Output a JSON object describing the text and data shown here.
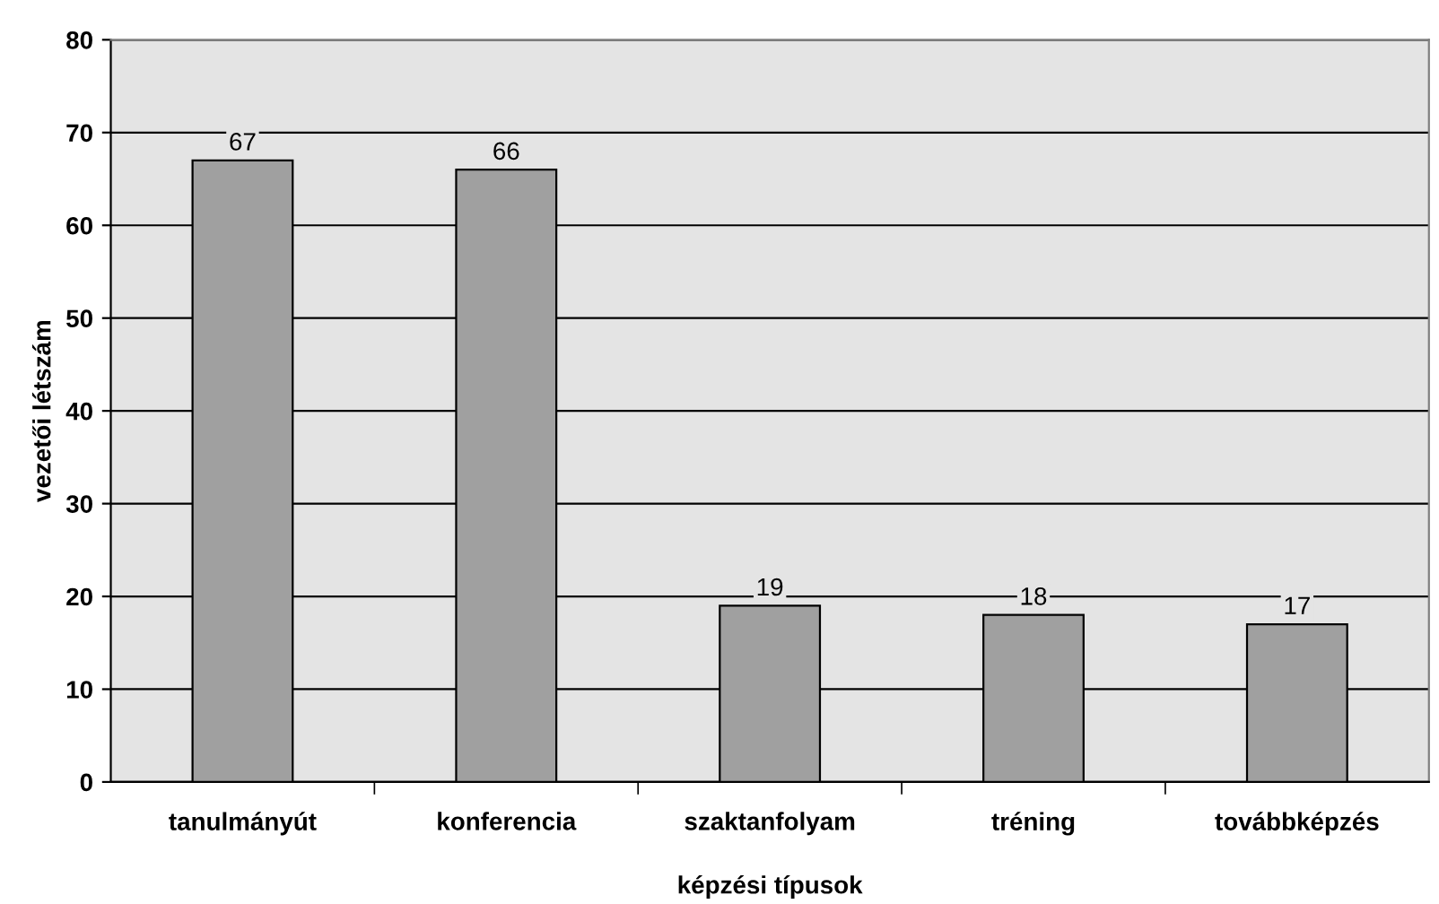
{
  "chart_data": {
    "type": "bar",
    "xlabel": "képzési típusok",
    "ylabel": "vezetői létszám",
    "categories": [
      "tanulmányút",
      "konferencia",
      "szaktanfolyam",
      "tréning",
      "továbbképzés"
    ],
    "values": [
      67,
      66,
      19,
      18,
      17
    ],
    "color": "#a0a0a0",
    "ylim": [
      0,
      80
    ],
    "yticks": [
      0,
      10,
      20,
      30,
      40,
      50,
      60,
      70,
      80
    ],
    "grid": "y",
    "data_labels": true
  }
}
